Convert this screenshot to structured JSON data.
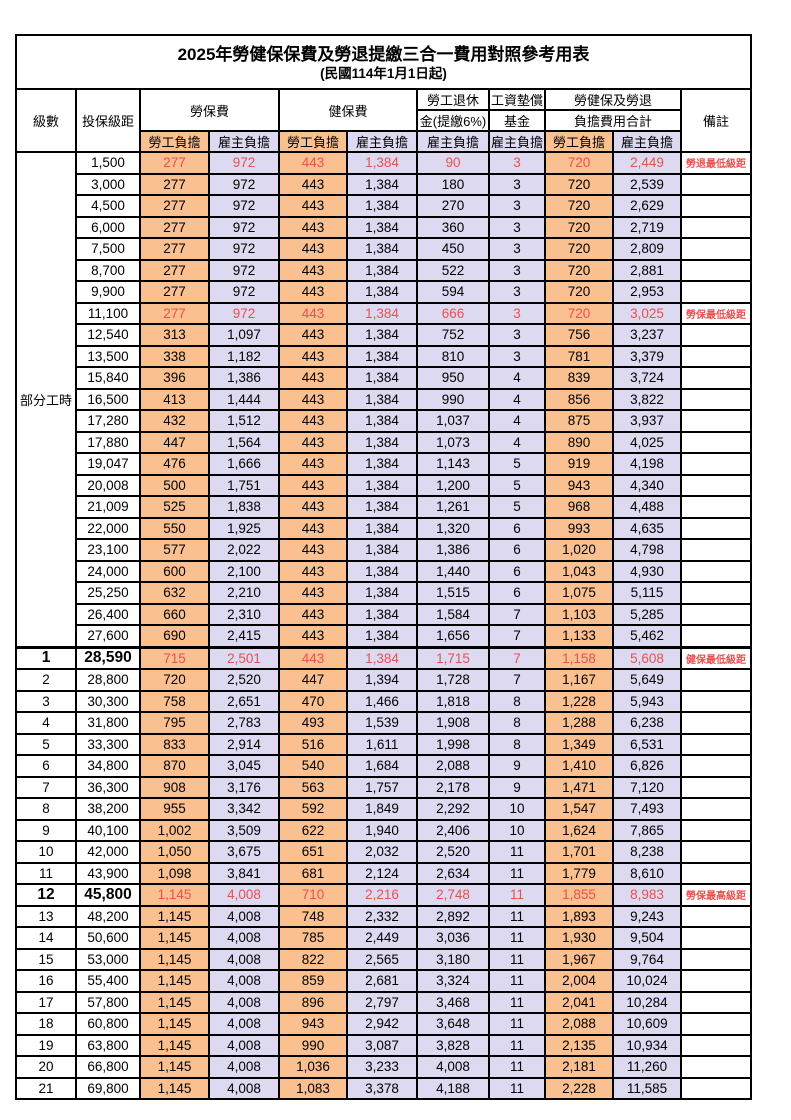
{
  "title": "2025年勞健保保費及勞退提繳三合一費用對照參考用表",
  "subtitle": "(民國114年1月1日起)",
  "colors": {
    "employee_column_bg": "#FAC090",
    "employer_column_bg": "#DDD9F0",
    "highlight_text": "#E95050",
    "grid_line": "#000000"
  },
  "header": {
    "level": "級數",
    "bracket": "投保級距",
    "labor_insurance": "勞保費",
    "health_insurance": "健保費",
    "pension_line1": "勞工退休",
    "pension_line2": "金(提繳6%)",
    "wage_fund_line1": "工資墊償",
    "wage_fund_line2": "基金",
    "total_line1": "勞健保及勞退",
    "total_line2": "負擔費用合計",
    "remarks": "備註",
    "employee": "勞工負擔",
    "employer": "雇主負擔"
  },
  "part_time_label": "部分工時",
  "part_time_rowspan": 23,
  "rows": [
    {
      "level": "",
      "bracket": "1,500",
      "values": [
        "277",
        "972",
        "443",
        "1,384",
        "90",
        "3",
        "720",
        "2,449"
      ],
      "note": "勞退最低級距",
      "highlight": true,
      "emphasis": false,
      "section_start": false
    },
    {
      "level": "",
      "bracket": "3,000",
      "values": [
        "277",
        "972",
        "443",
        "1,384",
        "180",
        "3",
        "720",
        "2,539"
      ],
      "note": "",
      "highlight": false,
      "emphasis": false,
      "section_start": false
    },
    {
      "level": "",
      "bracket": "4,500",
      "values": [
        "277",
        "972",
        "443",
        "1,384",
        "270",
        "3",
        "720",
        "2,629"
      ],
      "note": "",
      "highlight": false,
      "emphasis": false,
      "section_start": false
    },
    {
      "level": "",
      "bracket": "6,000",
      "values": [
        "277",
        "972",
        "443",
        "1,384",
        "360",
        "3",
        "720",
        "2,719"
      ],
      "note": "",
      "highlight": false,
      "emphasis": false,
      "section_start": false
    },
    {
      "level": "",
      "bracket": "7,500",
      "values": [
        "277",
        "972",
        "443",
        "1,384",
        "450",
        "3",
        "720",
        "2,809"
      ],
      "note": "",
      "highlight": false,
      "emphasis": false,
      "section_start": false
    },
    {
      "level": "",
      "bracket": "8,700",
      "values": [
        "277",
        "972",
        "443",
        "1,384",
        "522",
        "3",
        "720",
        "2,881"
      ],
      "note": "",
      "highlight": false,
      "emphasis": false,
      "section_start": false
    },
    {
      "level": "",
      "bracket": "9,900",
      "values": [
        "277",
        "972",
        "443",
        "1,384",
        "594",
        "3",
        "720",
        "2,953"
      ],
      "note": "",
      "highlight": false,
      "emphasis": false,
      "section_start": false
    },
    {
      "level": "",
      "bracket": "11,100",
      "values": [
        "277",
        "972",
        "443",
        "1,384",
        "666",
        "3",
        "720",
        "3,025"
      ],
      "note": "勞保最低級距",
      "highlight": true,
      "emphasis": false,
      "section_start": false
    },
    {
      "level": "",
      "bracket": "12,540",
      "values": [
        "313",
        "1,097",
        "443",
        "1,384",
        "752",
        "3",
        "756",
        "3,237"
      ],
      "note": "",
      "highlight": false,
      "emphasis": false,
      "section_start": false
    },
    {
      "level": "",
      "bracket": "13,500",
      "values": [
        "338",
        "1,182",
        "443",
        "1,384",
        "810",
        "3",
        "781",
        "3,379"
      ],
      "note": "",
      "highlight": false,
      "emphasis": false,
      "section_start": false
    },
    {
      "level": "",
      "bracket": "15,840",
      "values": [
        "396",
        "1,386",
        "443",
        "1,384",
        "950",
        "4",
        "839",
        "3,724"
      ],
      "note": "",
      "highlight": false,
      "emphasis": false,
      "section_start": false
    },
    {
      "level": "",
      "bracket": "16,500",
      "values": [
        "413",
        "1,444",
        "443",
        "1,384",
        "990",
        "4",
        "856",
        "3,822"
      ],
      "note": "",
      "highlight": false,
      "emphasis": false,
      "section_start": false
    },
    {
      "level": "",
      "bracket": "17,280",
      "values": [
        "432",
        "1,512",
        "443",
        "1,384",
        "1,037",
        "4",
        "875",
        "3,937"
      ],
      "note": "",
      "highlight": false,
      "emphasis": false,
      "section_start": false
    },
    {
      "level": "",
      "bracket": "17,880",
      "values": [
        "447",
        "1,564",
        "443",
        "1,384",
        "1,073",
        "4",
        "890",
        "4,025"
      ],
      "note": "",
      "highlight": false,
      "emphasis": false,
      "section_start": false
    },
    {
      "level": "",
      "bracket": "19,047",
      "values": [
        "476",
        "1,666",
        "443",
        "1,384",
        "1,143",
        "5",
        "919",
        "4,198"
      ],
      "note": "",
      "highlight": false,
      "emphasis": false,
      "section_start": false
    },
    {
      "level": "",
      "bracket": "20,008",
      "values": [
        "500",
        "1,751",
        "443",
        "1,384",
        "1,200",
        "5",
        "943",
        "4,340"
      ],
      "note": "",
      "highlight": false,
      "emphasis": false,
      "section_start": false
    },
    {
      "level": "",
      "bracket": "21,009",
      "values": [
        "525",
        "1,838",
        "443",
        "1,384",
        "1,261",
        "5",
        "968",
        "4,488"
      ],
      "note": "",
      "highlight": false,
      "emphasis": false,
      "section_start": false
    },
    {
      "level": "",
      "bracket": "22,000",
      "values": [
        "550",
        "1,925",
        "443",
        "1,384",
        "1,320",
        "6",
        "993",
        "4,635"
      ],
      "note": "",
      "highlight": false,
      "emphasis": false,
      "section_start": false
    },
    {
      "level": "",
      "bracket": "23,100",
      "values": [
        "577",
        "2,022",
        "443",
        "1,384",
        "1,386",
        "6",
        "1,020",
        "4,798"
      ],
      "note": "",
      "highlight": false,
      "emphasis": false,
      "section_start": false
    },
    {
      "level": "",
      "bracket": "24,000",
      "values": [
        "600",
        "2,100",
        "443",
        "1,384",
        "1,440",
        "6",
        "1,043",
        "4,930"
      ],
      "note": "",
      "highlight": false,
      "emphasis": false,
      "section_start": false
    },
    {
      "level": "",
      "bracket": "25,250",
      "values": [
        "632",
        "2,210",
        "443",
        "1,384",
        "1,515",
        "6",
        "1,075",
        "5,115"
      ],
      "note": "",
      "highlight": false,
      "emphasis": false,
      "section_start": false
    },
    {
      "level": "",
      "bracket": "26,400",
      "values": [
        "660",
        "2,310",
        "443",
        "1,384",
        "1,584",
        "7",
        "1,103",
        "5,285"
      ],
      "note": "",
      "highlight": false,
      "emphasis": false,
      "section_start": false
    },
    {
      "level": "",
      "bracket": "27,600",
      "values": [
        "690",
        "2,415",
        "443",
        "1,384",
        "1,656",
        "7",
        "1,133",
        "5,462"
      ],
      "note": "",
      "highlight": false,
      "emphasis": false,
      "section_start": false
    },
    {
      "level": "1",
      "bracket": "28,590",
      "values": [
        "715",
        "2,501",
        "443",
        "1,384",
        "1,715",
        "7",
        "1,158",
        "5,608"
      ],
      "note": "健保最低級距",
      "highlight": true,
      "emphasis": true,
      "section_start": true
    },
    {
      "level": "2",
      "bracket": "28,800",
      "values": [
        "720",
        "2,520",
        "447",
        "1,394",
        "1,728",
        "7",
        "1,167",
        "5,649"
      ],
      "note": "",
      "highlight": false,
      "emphasis": false,
      "section_start": false
    },
    {
      "level": "3",
      "bracket": "30,300",
      "values": [
        "758",
        "2,651",
        "470",
        "1,466",
        "1,818",
        "8",
        "1,228",
        "5,943"
      ],
      "note": "",
      "highlight": false,
      "emphasis": false,
      "section_start": false
    },
    {
      "level": "4",
      "bracket": "31,800",
      "values": [
        "795",
        "2,783",
        "493",
        "1,539",
        "1,908",
        "8",
        "1,288",
        "6,238"
      ],
      "note": "",
      "highlight": false,
      "emphasis": false,
      "section_start": false
    },
    {
      "level": "5",
      "bracket": "33,300",
      "values": [
        "833",
        "2,914",
        "516",
        "1,611",
        "1,998",
        "8",
        "1,349",
        "6,531"
      ],
      "note": "",
      "highlight": false,
      "emphasis": false,
      "section_start": false
    },
    {
      "level": "6",
      "bracket": "34,800",
      "values": [
        "870",
        "3,045",
        "540",
        "1,684",
        "2,088",
        "9",
        "1,410",
        "6,826"
      ],
      "note": "",
      "highlight": false,
      "emphasis": false,
      "section_start": false
    },
    {
      "level": "7",
      "bracket": "36,300",
      "values": [
        "908",
        "3,176",
        "563",
        "1,757",
        "2,178",
        "9",
        "1,471",
        "7,120"
      ],
      "note": "",
      "highlight": false,
      "emphasis": false,
      "section_start": false
    },
    {
      "level": "8",
      "bracket": "38,200",
      "values": [
        "955",
        "3,342",
        "592",
        "1,849",
        "2,292",
        "10",
        "1,547",
        "7,493"
      ],
      "note": "",
      "highlight": false,
      "emphasis": false,
      "section_start": false
    },
    {
      "level": "9",
      "bracket": "40,100",
      "values": [
        "1,002",
        "3,509",
        "622",
        "1,940",
        "2,406",
        "10",
        "1,624",
        "7,865"
      ],
      "note": "",
      "highlight": false,
      "emphasis": false,
      "section_start": false
    },
    {
      "level": "10",
      "bracket": "42,000",
      "values": [
        "1,050",
        "3,675",
        "651",
        "2,032",
        "2,520",
        "11",
        "1,701",
        "8,238"
      ],
      "note": "",
      "highlight": false,
      "emphasis": false,
      "section_start": false
    },
    {
      "level": "11",
      "bracket": "43,900",
      "values": [
        "1,098",
        "3,841",
        "681",
        "2,124",
        "2,634",
        "11",
        "1,779",
        "8,610"
      ],
      "note": "",
      "highlight": false,
      "emphasis": false,
      "section_start": false
    },
    {
      "level": "12",
      "bracket": "45,800",
      "values": [
        "1,145",
        "4,008",
        "710",
        "2,216",
        "2,748",
        "11",
        "1,855",
        "8,983"
      ],
      "note": "勞保最高級距",
      "highlight": true,
      "emphasis": true,
      "section_start": false
    },
    {
      "level": "13",
      "bracket": "48,200",
      "values": [
        "1,145",
        "4,008",
        "748",
        "2,332",
        "2,892",
        "11",
        "1,893",
        "9,243"
      ],
      "note": "",
      "highlight": false,
      "emphasis": false,
      "section_start": false
    },
    {
      "level": "14",
      "bracket": "50,600",
      "values": [
        "1,145",
        "4,008",
        "785",
        "2,449",
        "3,036",
        "11",
        "1,930",
        "9,504"
      ],
      "note": "",
      "highlight": false,
      "emphasis": false,
      "section_start": false
    },
    {
      "level": "15",
      "bracket": "53,000",
      "values": [
        "1,145",
        "4,008",
        "822",
        "2,565",
        "3,180",
        "11",
        "1,967",
        "9,764"
      ],
      "note": "",
      "highlight": false,
      "emphasis": false,
      "section_start": false
    },
    {
      "level": "16",
      "bracket": "55,400",
      "values": [
        "1,145",
        "4,008",
        "859",
        "2,681",
        "3,324",
        "11",
        "2,004",
        "10,024"
      ],
      "note": "",
      "highlight": false,
      "emphasis": false,
      "section_start": false
    },
    {
      "level": "17",
      "bracket": "57,800",
      "values": [
        "1,145",
        "4,008",
        "896",
        "2,797",
        "3,468",
        "11",
        "2,041",
        "10,284"
      ],
      "note": "",
      "highlight": false,
      "emphasis": false,
      "section_start": false
    },
    {
      "level": "18",
      "bracket": "60,800",
      "values": [
        "1,145",
        "4,008",
        "943",
        "2,942",
        "3,648",
        "11",
        "2,088",
        "10,609"
      ],
      "note": "",
      "highlight": false,
      "emphasis": false,
      "section_start": false
    },
    {
      "level": "19",
      "bracket": "63,800",
      "values": [
        "1,145",
        "4,008",
        "990",
        "3,087",
        "3,828",
        "11",
        "2,135",
        "10,934"
      ],
      "note": "",
      "highlight": false,
      "emphasis": false,
      "section_start": false
    },
    {
      "level": "20",
      "bracket": "66,800",
      "values": [
        "1,145",
        "4,008",
        "1,036",
        "3,233",
        "4,008",
        "11",
        "2,181",
        "11,260"
      ],
      "note": "",
      "highlight": false,
      "emphasis": false,
      "section_start": false
    },
    {
      "level": "21",
      "bracket": "69,800",
      "values": [
        "1,145",
        "4,008",
        "1,083",
        "3,378",
        "4,188",
        "11",
        "2,228",
        "11,585"
      ],
      "note": "",
      "highlight": false,
      "emphasis": false,
      "section_start": false
    }
  ]
}
